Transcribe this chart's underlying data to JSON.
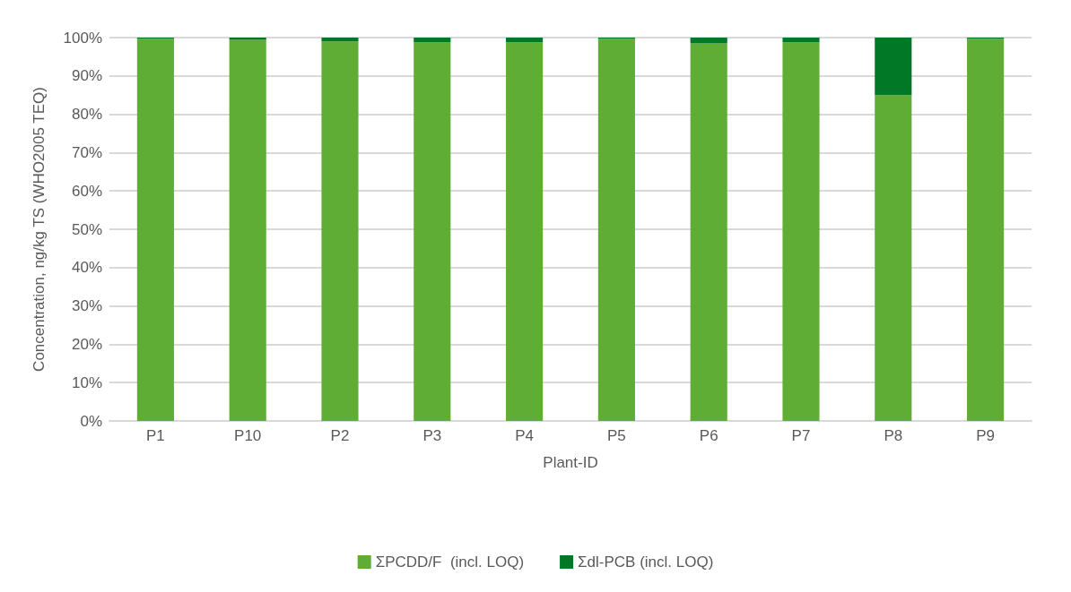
{
  "chart_data": {
    "type": "bar",
    "stacked": true,
    "xlabel": "Plant-ID",
    "ylabel": "Concentration, ng/kg TS (WHO2005 TEQ)",
    "categories": [
      "P1",
      "P10",
      "P2",
      "P3",
      "P4",
      "P5",
      "P6",
      "P7",
      "P8",
      "P9"
    ],
    "series": [
      {
        "name": "ΣPCDD/F  (incl. LOQ)",
        "color": "#5fad35",
        "values": [
          99.7,
          99.4,
          99.0,
          98.8,
          98.8,
          99.7,
          98.5,
          98.8,
          85,
          99.7
        ]
      },
      {
        "name": "Σdl-PCB (incl. LOQ)",
        "color": "#007826",
        "values": [
          0.3,
          0.6,
          1.0,
          1.2,
          1.2,
          0.3,
          1.5,
          1.2,
          15,
          0.3
        ]
      }
    ],
    "ylim": [
      0,
      100
    ],
    "yticks": [
      {
        "value": 0,
        "label": "0%"
      },
      {
        "value": 10,
        "label": "10%"
      },
      {
        "value": 20,
        "label": "20%"
      },
      {
        "value": 30,
        "label": "30%"
      },
      {
        "value": 40,
        "label": "40%"
      },
      {
        "value": 50,
        "label": "50%"
      },
      {
        "value": 60,
        "label": "60%"
      },
      {
        "value": 70,
        "label": "70%"
      },
      {
        "value": 80,
        "label": "80%"
      },
      {
        "value": 90,
        "label": "90%"
      },
      {
        "value": 100,
        "label": "100%"
      }
    ],
    "grid": "y",
    "legend": "bottom"
  }
}
